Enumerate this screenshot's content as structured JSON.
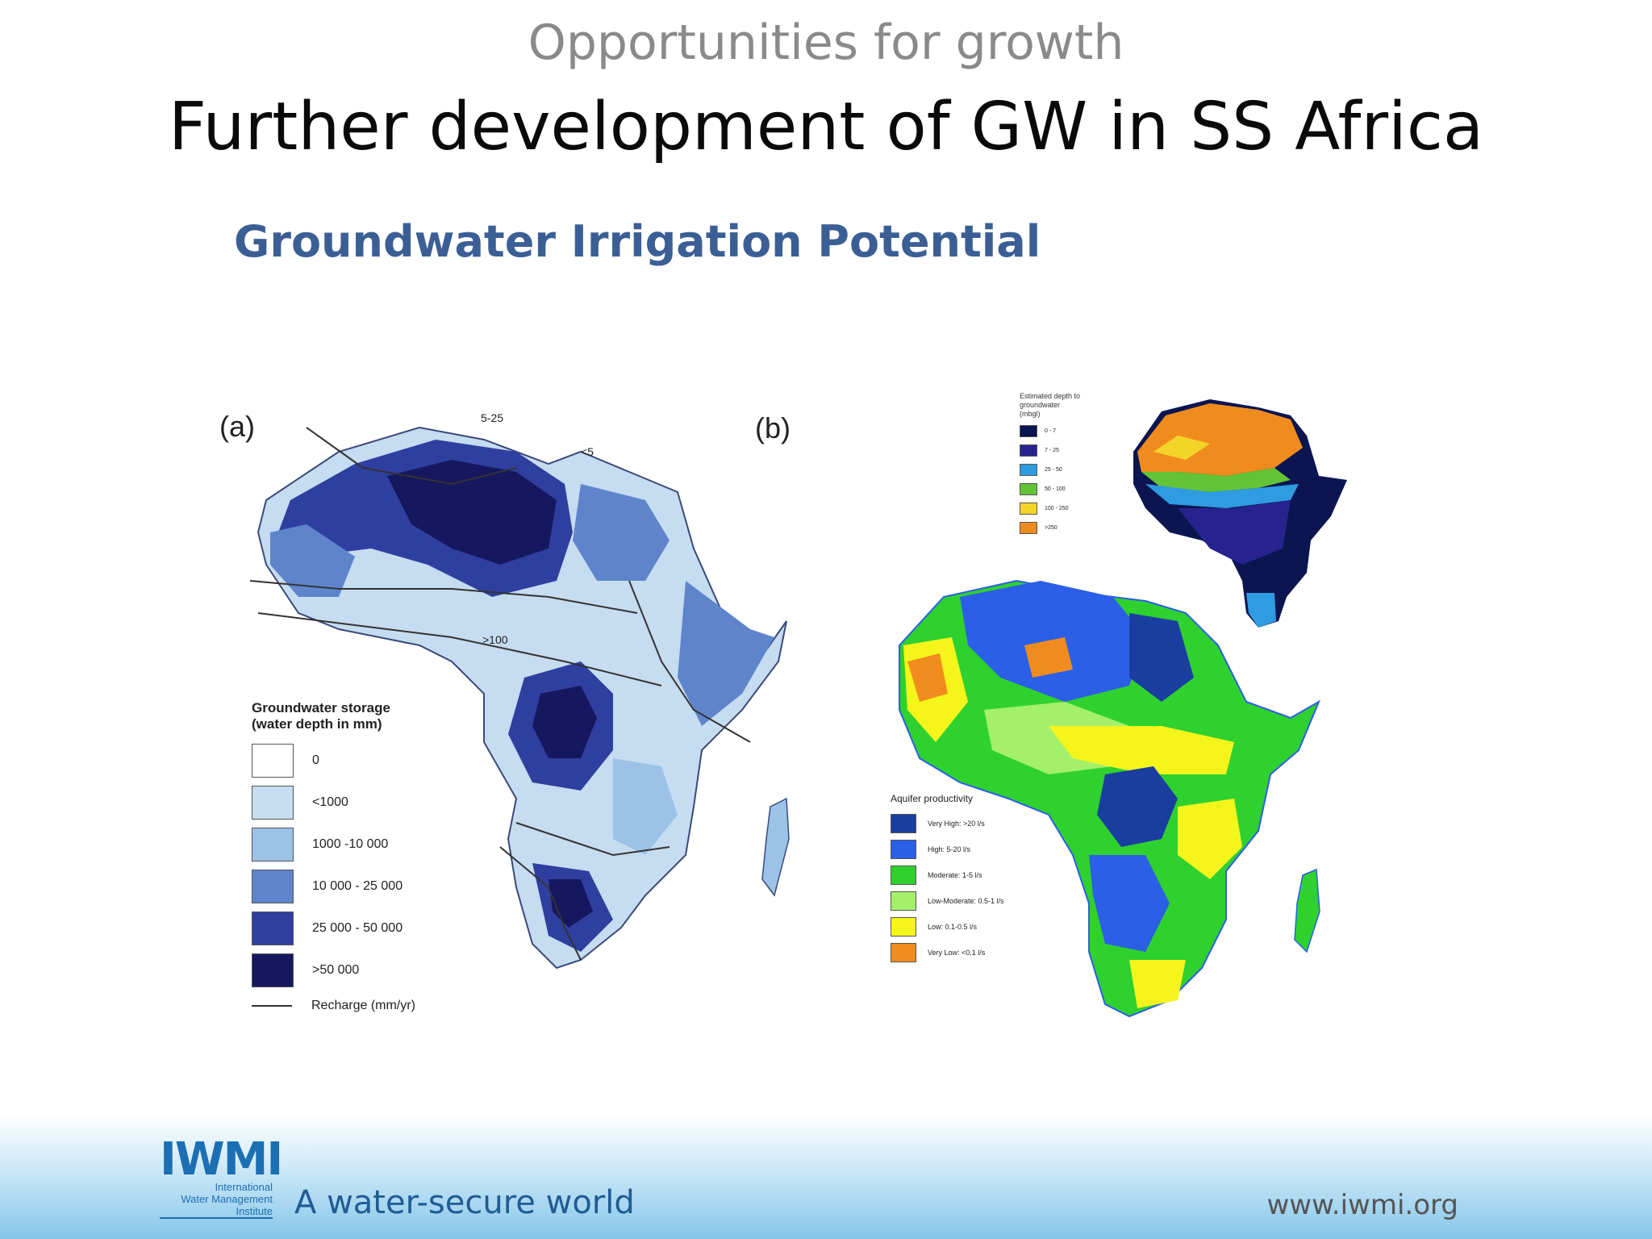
{
  "slide": {
    "kicker": "Opportunities for growth",
    "title": "Further development of GW in SS Africa",
    "subtitle": "Groundwater Irrigation Potential"
  },
  "map_a": {
    "panel_label": "(a)",
    "legend_title_1": "Groundwater storage",
    "legend_title_2": "(water depth in mm)",
    "legend": [
      {
        "label": "0",
        "color": "#ffffff"
      },
      {
        "label": "<1000",
        "color": "#c6dcf0"
      },
      {
        "label": "1000 -10 000",
        "color": "#9cc2e8"
      },
      {
        "label": "10 000 - 25 000",
        "color": "#5e85cc"
      },
      {
        "label": "25 000 - 50 000",
        "color": "#2f3f9f"
      },
      {
        "label": ">50 000",
        "color": "#15185e"
      }
    ],
    "recharge_label": "Recharge (mm/yr)",
    "contour_labels": [
      "5-25",
      "<5",
      ">100"
    ]
  },
  "map_b": {
    "panel_label": "(b)",
    "legend_title": "Aquifer productivity",
    "legend": [
      {
        "label": "Very High: >20 l/s",
        "color": "#1a3ea0"
      },
      {
        "label": "High: 5-20 l/s",
        "color": "#2b5fe8"
      },
      {
        "label": "Moderate: 1-5 l/s",
        "color": "#2fd12f"
      },
      {
        "label": "Low-Moderate: 0.5-1 l/s",
        "color": "#a4f06a"
      },
      {
        "label": "Low: 0.1-0.5 l/s",
        "color": "#f5f51c"
      },
      {
        "label": "Very Low: <0.1 l/s",
        "color": "#f08c1e"
      }
    ]
  },
  "map_c": {
    "legend_title_1": "Estimated depth to",
    "legend_title_2": "groundwater",
    "legend_title_3": "(mbgl)",
    "legend": [
      {
        "label": "0 - 7",
        "color": "#0b1550"
      },
      {
        "label": "7 - 25",
        "color": "#26238f"
      },
      {
        "label": "25 - 50",
        "color": "#2f9be0"
      },
      {
        "label": "50 - 100",
        "color": "#63c336"
      },
      {
        "label": "100 - 250",
        "color": "#f3d529"
      },
      {
        "label": ">250",
        "color": "#f08c1e"
      }
    ]
  },
  "footer": {
    "logo": "IWMI",
    "logo_line_1": "International",
    "logo_line_2": "Water Management",
    "logo_line_3": "Institute",
    "tagline": "A water-secure world",
    "url": "www.iwmi.org"
  }
}
